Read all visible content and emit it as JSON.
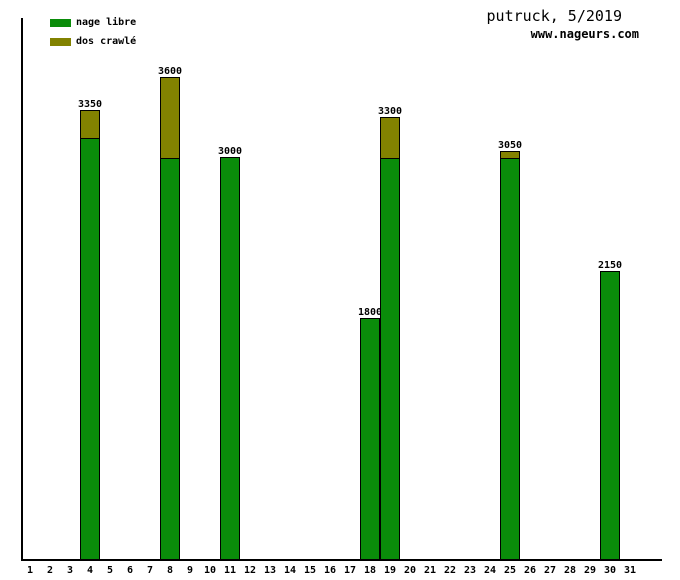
{
  "header": {
    "title": "putruck, 5/2019",
    "website": "www.nageurs.com"
  },
  "legend": {
    "items": [
      {
        "label": "nage libre",
        "color": "#0a8c0a"
      },
      {
        "label": "dos crawlé",
        "color": "#828200"
      }
    ]
  },
  "colors": {
    "nage_libre": "#0a8c0a",
    "dos_crawle": "#828200",
    "axis": "#000000",
    "background": "#ffffff",
    "text": "#000000"
  },
  "chart_data": {
    "type": "bar",
    "stacked": true,
    "title": "putruck, 5/2019",
    "watermark": "www.nageurs.com",
    "xlabel": "",
    "ylabel": "",
    "grid": false,
    "legend_position": "top-left",
    "ylim": [
      0,
      4050
    ],
    "categories": [
      1,
      2,
      3,
      4,
      5,
      6,
      7,
      8,
      9,
      10,
      11,
      12,
      13,
      14,
      15,
      16,
      17,
      18,
      19,
      20,
      21,
      22,
      23,
      24,
      25,
      26,
      27,
      28,
      29,
      30,
      31
    ],
    "series": [
      {
        "name": "nage libre",
        "color": "#0a8c0a",
        "values": [
          0,
          0,
          0,
          3150,
          0,
          0,
          0,
          3000,
          0,
          0,
          3000,
          0,
          0,
          0,
          0,
          0,
          0,
          1800,
          3000,
          0,
          0,
          0,
          0,
          0,
          3000,
          0,
          0,
          0,
          0,
          2150,
          0
        ]
      },
      {
        "name": "dos crawlé",
        "color": "#828200",
        "values": [
          0,
          0,
          0,
          200,
          0,
          0,
          0,
          600,
          0,
          0,
          0,
          0,
          0,
          0,
          0,
          0,
          0,
          0,
          300,
          0,
          0,
          0,
          0,
          0,
          50,
          0,
          0,
          0,
          0,
          0,
          0
        ]
      }
    ],
    "bars": [
      {
        "day": 4,
        "nage_libre": 3150,
        "dos_crawle": 200,
        "total": 3350,
        "label": "3350"
      },
      {
        "day": 8,
        "nage_libre": 3000,
        "dos_crawle": 600,
        "total": 3600,
        "label": "3600"
      },
      {
        "day": 11,
        "nage_libre": 3000,
        "dos_crawle": 0,
        "total": 3000,
        "label": "3000"
      },
      {
        "day": 18,
        "nage_libre": 1800,
        "dos_crawle": 0,
        "total": 1800,
        "label": "1800"
      },
      {
        "day": 19,
        "nage_libre": 3000,
        "dos_crawle": 300,
        "total": 3300,
        "label": "3300"
      },
      {
        "day": 25,
        "nage_libre": 3000,
        "dos_crawle": 50,
        "total": 3050,
        "label": "3050"
      },
      {
        "day": 30,
        "nage_libre": 2150,
        "dos_crawle": 0,
        "total": 2150,
        "label": "2150"
      }
    ]
  }
}
